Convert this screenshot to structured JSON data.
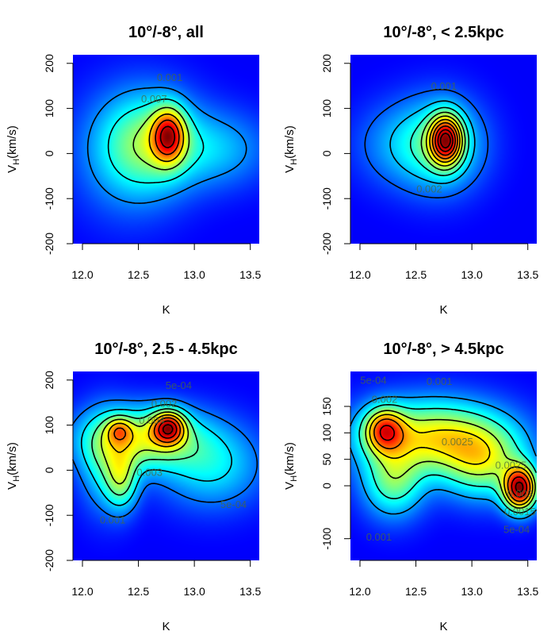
{
  "chart_data": [
    {
      "type": "heatmap",
      "title": "10°/-8°, all",
      "xlabel": "K",
      "ylabel_main": "V",
      "ylabel_sub": "H",
      "ylabel_rest": "(km/s)",
      "xlim": [
        11.915,
        13.58
      ],
      "ylim": [
        -200,
        219
      ],
      "xticks": [
        "12.0",
        "12.5",
        "13.0",
        "13.5"
      ],
      "yticks": [
        "-200",
        "-100",
        "0",
        "100",
        "200"
      ],
      "components": [
        [
          12.77,
          40,
          0.1,
          40,
          1.0
        ],
        [
          12.62,
          25,
          0.28,
          70,
          0.45
        ],
        [
          13.2,
          10,
          0.3,
          55,
          0.22
        ],
        [
          12.4,
          0,
          0.3,
          90,
          0.2
        ]
      ],
      "levels": [
        0.1,
        0.22,
        0.38,
        0.55,
        0.72,
        0.88
      ],
      "contour_labels": [
        {
          "text": "0.001",
          "k": 12.78,
          "v": 170
        },
        {
          "text": "0.007",
          "k": 12.64,
          "v": 122
        }
      ]
    },
    {
      "type": "heatmap",
      "title": "10°/-8°, < 2.5kpc",
      "xlabel": "K",
      "ylabel_main": "V",
      "ylabel_sub": "H",
      "ylabel_rest": "(km/s)",
      "xlim": [
        11.915,
        13.58
      ],
      "ylim": [
        -200,
        219
      ],
      "xticks": [
        "12.0",
        "12.5",
        "13.0",
        "13.5"
      ],
      "yticks": [
        "-200",
        "-100",
        "0",
        "100",
        "200"
      ],
      "components": [
        [
          12.77,
          30,
          0.1,
          38,
          1.0
        ],
        [
          12.7,
          20,
          0.25,
          65,
          0.4
        ],
        [
          12.3,
          20,
          0.25,
          60,
          0.12
        ]
      ],
      "levels": [
        0.06,
        0.15,
        0.25,
        0.35,
        0.45,
        0.55,
        0.65,
        0.75,
        0.85,
        0.93
      ],
      "contour_labels": [
        {
          "text": "0.001",
          "k": 12.75,
          "v": 150
        },
        {
          "text": "0.002",
          "k": 12.62,
          "v": -78
        }
      ]
    },
    {
      "type": "heatmap",
      "title": "10°/-8°, 2.5 - 4.5kpc",
      "xlabel": "K",
      "ylabel_main": "V",
      "ylabel_sub": "H",
      "ylabel_rest": "(km/s)",
      "xlim": [
        11.915,
        13.58
      ],
      "ylim": [
        -200,
        219
      ],
      "xticks": [
        "12.0",
        "12.5",
        "13.0",
        "13.5"
      ],
      "yticks": [
        "-200",
        "-100",
        "0",
        "100",
        "200"
      ],
      "components": [
        [
          12.77,
          95,
          0.1,
          25,
          1.0
        ],
        [
          12.33,
          88,
          0.08,
          20,
          0.45
        ],
        [
          12.55,
          70,
          0.35,
          45,
          0.65
        ],
        [
          12.35,
          -20,
          0.1,
          45,
          0.45
        ],
        [
          13.15,
          10,
          0.3,
          60,
          0.3
        ],
        [
          12.2,
          20,
          0.15,
          70,
          0.3
        ]
      ],
      "levels": [
        0.08,
        0.18,
        0.3,
        0.42,
        0.55,
        0.68,
        0.82,
        0.94
      ],
      "contour_labels": [
        {
          "text": "5e-04",
          "k": 12.86,
          "v": 189
        },
        {
          "text": "0.002",
          "k": 12.73,
          "v": 149
        },
        {
          "text": "0.004",
          "k": 12.62,
          "v": 112
        },
        {
          "text": "0.003",
          "k": 12.6,
          "v": -4
        },
        {
          "text": "0.001",
          "k": 12.27,
          "v": -109
        },
        {
          "text": "5e-04",
          "k": 13.35,
          "v": -75
        }
      ]
    },
    {
      "type": "heatmap",
      "title": "10°/-8°, > 4.5kpc",
      "xlabel": "K",
      "ylabel_main": "V",
      "ylabel_sub": "H",
      "ylabel_rest": "(km/s)",
      "xlim": [
        11.915,
        13.58
      ],
      "ylim": [
        -141,
        216
      ],
      "xticks": [
        "12.0",
        "12.5",
        "13.0",
        "13.5"
      ],
      "yticks": [
        "-100",
        "0",
        "50",
        "100",
        "150"
      ],
      "components": [
        [
          13.43,
          -5,
          0.1,
          28,
          1.0
        ],
        [
          12.22,
          105,
          0.12,
          28,
          0.62
        ],
        [
          12.65,
          92,
          0.42,
          45,
          0.55
        ],
        [
          12.3,
          10,
          0.18,
          45,
          0.35
        ],
        [
          13.1,
          45,
          0.25,
          45,
          0.4
        ]
      ],
      "levels": [
        0.12,
        0.25,
        0.4,
        0.52,
        0.66,
        0.82,
        0.95
      ],
      "contour_labels": [
        {
          "text": "5e-04",
          "k": 12.12,
          "v": 200
        },
        {
          "text": "0.001",
          "k": 12.71,
          "v": 198
        },
        {
          "text": "0.002",
          "k": 12.22,
          "v": 164
        },
        {
          "text": "0.0025",
          "k": 12.87,
          "v": 84
        },
        {
          "text": "0.0025",
          "k": 13.35,
          "v": 40
        },
        {
          "text": "0.003",
          "k": 13.43,
          "v": -14
        },
        {
          "text": "0.0015",
          "k": 13.43,
          "v": -48
        },
        {
          "text": "5e-04",
          "k": 13.4,
          "v": -82
        },
        {
          "text": "0.001",
          "k": 12.17,
          "v": -96
        }
      ]
    }
  ]
}
